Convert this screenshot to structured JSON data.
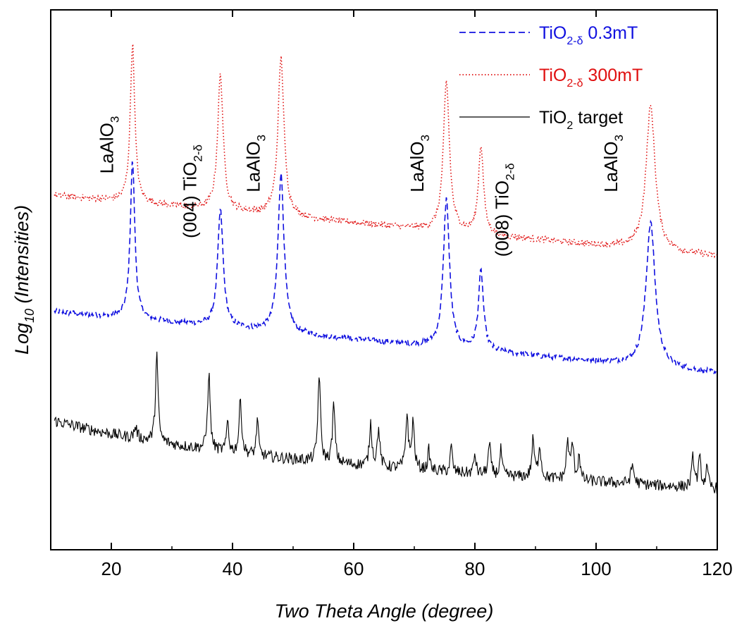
{
  "chart_data": {
    "type": "line",
    "xlabel": "Two Theta Angle (degree)",
    "ylabel_main": "Log",
    "ylabel_sub": "10",
    "ylabel_rest": " (Intensities)",
    "xlim": [
      10,
      120
    ],
    "xticks": [
      20,
      40,
      60,
      80,
      100,
      120
    ],
    "xtick_labels": [
      "20",
      "40",
      "60",
      "80",
      "100",
      "120"
    ],
    "y_scale": "log",
    "y_ticks_shown": false,
    "grid": false,
    "legend_position": "top-right",
    "series": [
      {
        "legend_base": "TiO",
        "legend_sub": "2-δ",
        "legend_rest": " 0.3mT",
        "color": "#1010e0",
        "line_style": "dashed",
        "baseline": 0.3,
        "slope": 0.01,
        "noise": 0.018,
        "peaks": [
          [
            23.5,
            1.7,
            0.45
          ],
          [
            38.0,
            1.25,
            0.55
          ],
          [
            48.0,
            1.7,
            0.6
          ],
          [
            75.3,
            1.6,
            0.6
          ],
          [
            81.0,
            0.85,
            0.5
          ],
          [
            109.0,
            1.55,
            0.9
          ]
        ]
      },
      {
        "legend_base": "TiO",
        "legend_sub": "2-δ",
        "legend_rest": " 300mT",
        "color": "#e01010",
        "line_style": "dotted",
        "baseline": 1.55,
        "slope": 0.01,
        "noise": 0.022,
        "peaks": [
          [
            23.5,
            1.7,
            0.45
          ],
          [
            38.0,
            1.45,
            0.55
          ],
          [
            48.0,
            1.7,
            0.6
          ],
          [
            75.3,
            1.6,
            0.6
          ],
          [
            81.0,
            0.95,
            0.5
          ],
          [
            109.0,
            1.55,
            0.9
          ]
        ]
      },
      {
        "legend_base": "TiO",
        "legend_sub": "2",
        "legend_rest": " target",
        "color": "#000000",
        "line_style": "solid",
        "baseline": -0.95,
        "slope": 0.006,
        "noise": 0.028,
        "peaks": [
          [
            24.0,
            0.12,
            0.3
          ],
          [
            27.5,
            0.95,
            0.25
          ],
          [
            36.1,
            0.82,
            0.25
          ],
          [
            39.2,
            0.35,
            0.2
          ],
          [
            41.3,
            0.58,
            0.25
          ],
          [
            44.1,
            0.4,
            0.2
          ],
          [
            54.3,
            0.95,
            0.25
          ],
          [
            56.7,
            0.62,
            0.25
          ],
          [
            62.8,
            0.45,
            0.25
          ],
          [
            64.1,
            0.4,
            0.25
          ],
          [
            68.8,
            0.58,
            0.25
          ],
          [
            69.8,
            0.5,
            0.25
          ],
          [
            72.4,
            0.22,
            0.2
          ],
          [
            76.1,
            0.28,
            0.2
          ],
          [
            80.0,
            0.22,
            0.2
          ],
          [
            82.4,
            0.32,
            0.25
          ],
          [
            84.3,
            0.28,
            0.2
          ],
          [
            89.6,
            0.4,
            0.25
          ],
          [
            90.7,
            0.35,
            0.25
          ],
          [
            95.3,
            0.4,
            0.25
          ],
          [
            96.1,
            0.38,
            0.25
          ],
          [
            97.2,
            0.28,
            0.2
          ],
          [
            106.0,
            0.2,
            0.3
          ],
          [
            116.0,
            0.32,
            0.25
          ],
          [
            117.1,
            0.3,
            0.25
          ],
          [
            118.3,
            0.2,
            0.25
          ]
        ]
      }
    ],
    "annotations": [
      {
        "main": "LaAlO",
        "sub": "3",
        "prefix": "",
        "x": 20.3,
        "y": 2.75
      },
      {
        "main": "TiO",
        "sub": "2-δ",
        "prefix": "(004) ",
        "x": 34.0,
        "y": 2.25
      },
      {
        "main": "LaAlO",
        "sub": "3",
        "prefix": "",
        "x": 44.5,
        "y": 2.55
      },
      {
        "main": "LaAlO",
        "sub": "3",
        "prefix": "",
        "x": 71.5,
        "y": 2.55
      },
      {
        "main": "TiO",
        "sub": "2-δ",
        "prefix": "(008) ",
        "x": 85.5,
        "y": 2.05
      },
      {
        "main": "LaAlO",
        "sub": "3",
        "prefix": "",
        "x": 103.5,
        "y": 2.55
      }
    ]
  }
}
